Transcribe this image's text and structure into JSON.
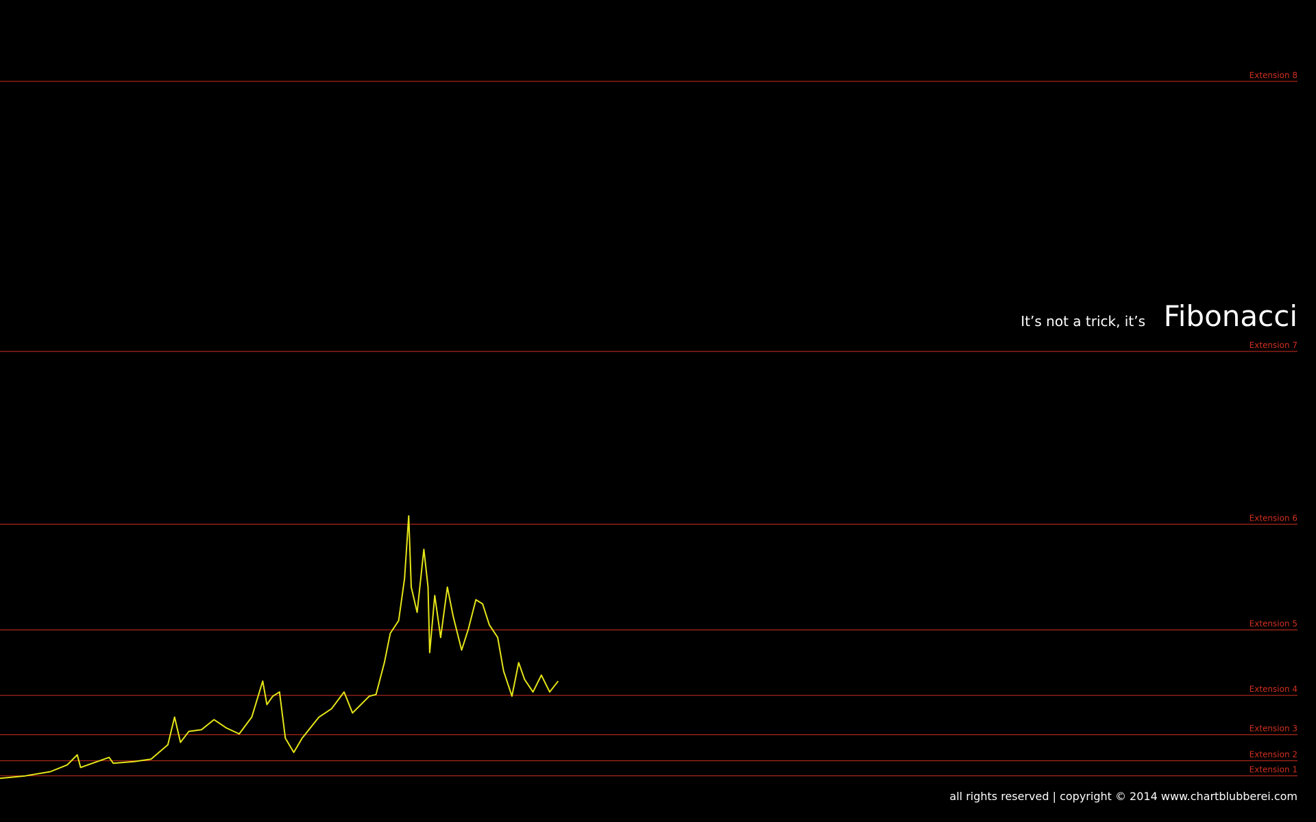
{
  "chart_data": {
    "type": "line",
    "subtitle": "It’s not a trick, it’s",
    "title": "Fibonacci",
    "footer": "all rights reserved | copyright © 2014 www.chartblubberei.com",
    "color": "#e6e619",
    "reference_color": "#d0301f",
    "xlim": [
      0,
      1568
    ],
    "ylim": [
      0,
      980
    ],
    "reference_lines": [
      {
        "label": "Extension 8",
        "value": 883
      },
      {
        "label": "Extension 7",
        "value": 561
      },
      {
        "label": "Extension 6",
        "value": 355
      },
      {
        "label": "Extension 5",
        "value": 229
      },
      {
        "label": "Extension 4",
        "value": 151
      },
      {
        "label": "Extension 3",
        "value": 104
      },
      {
        "label": "Extension 2",
        "value": 73
      },
      {
        "label": "Extension 1",
        "value": 55
      }
    ],
    "x": [
      0,
      30,
      60,
      80,
      92,
      96,
      110,
      130,
      135,
      160,
      180,
      200,
      208,
      215,
      225,
      240,
      255,
      270,
      285,
      300,
      313,
      318,
      325,
      333,
      340,
      350,
      360,
      380,
      395,
      410,
      420,
      440,
      448,
      458,
      465,
      475,
      482,
      487,
      490,
      497,
      505,
      510,
      512,
      518,
      525,
      533,
      540,
      550,
      558,
      567,
      575,
      583,
      593,
      600,
      610,
      618,
      625,
      635,
      645,
      655,
      665
    ],
    "values": [
      52,
      55,
      60,
      68,
      80,
      65,
      70,
      77,
      70,
      72,
      75,
      92,
      125,
      95,
      108,
      110,
      122,
      112,
      105,
      125,
      168,
      140,
      150,
      155,
      100,
      83,
      100,
      125,
      135,
      155,
      130,
      150,
      152,
      190,
      225,
      240,
      290,
      365,
      280,
      250,
      325,
      280,
      202,
      270,
      220,
      280,
      245,
      205,
      230,
      265,
      260,
      235,
      220,
      180,
      150,
      190,
      170,
      155,
      175,
      155,
      168
    ]
  }
}
